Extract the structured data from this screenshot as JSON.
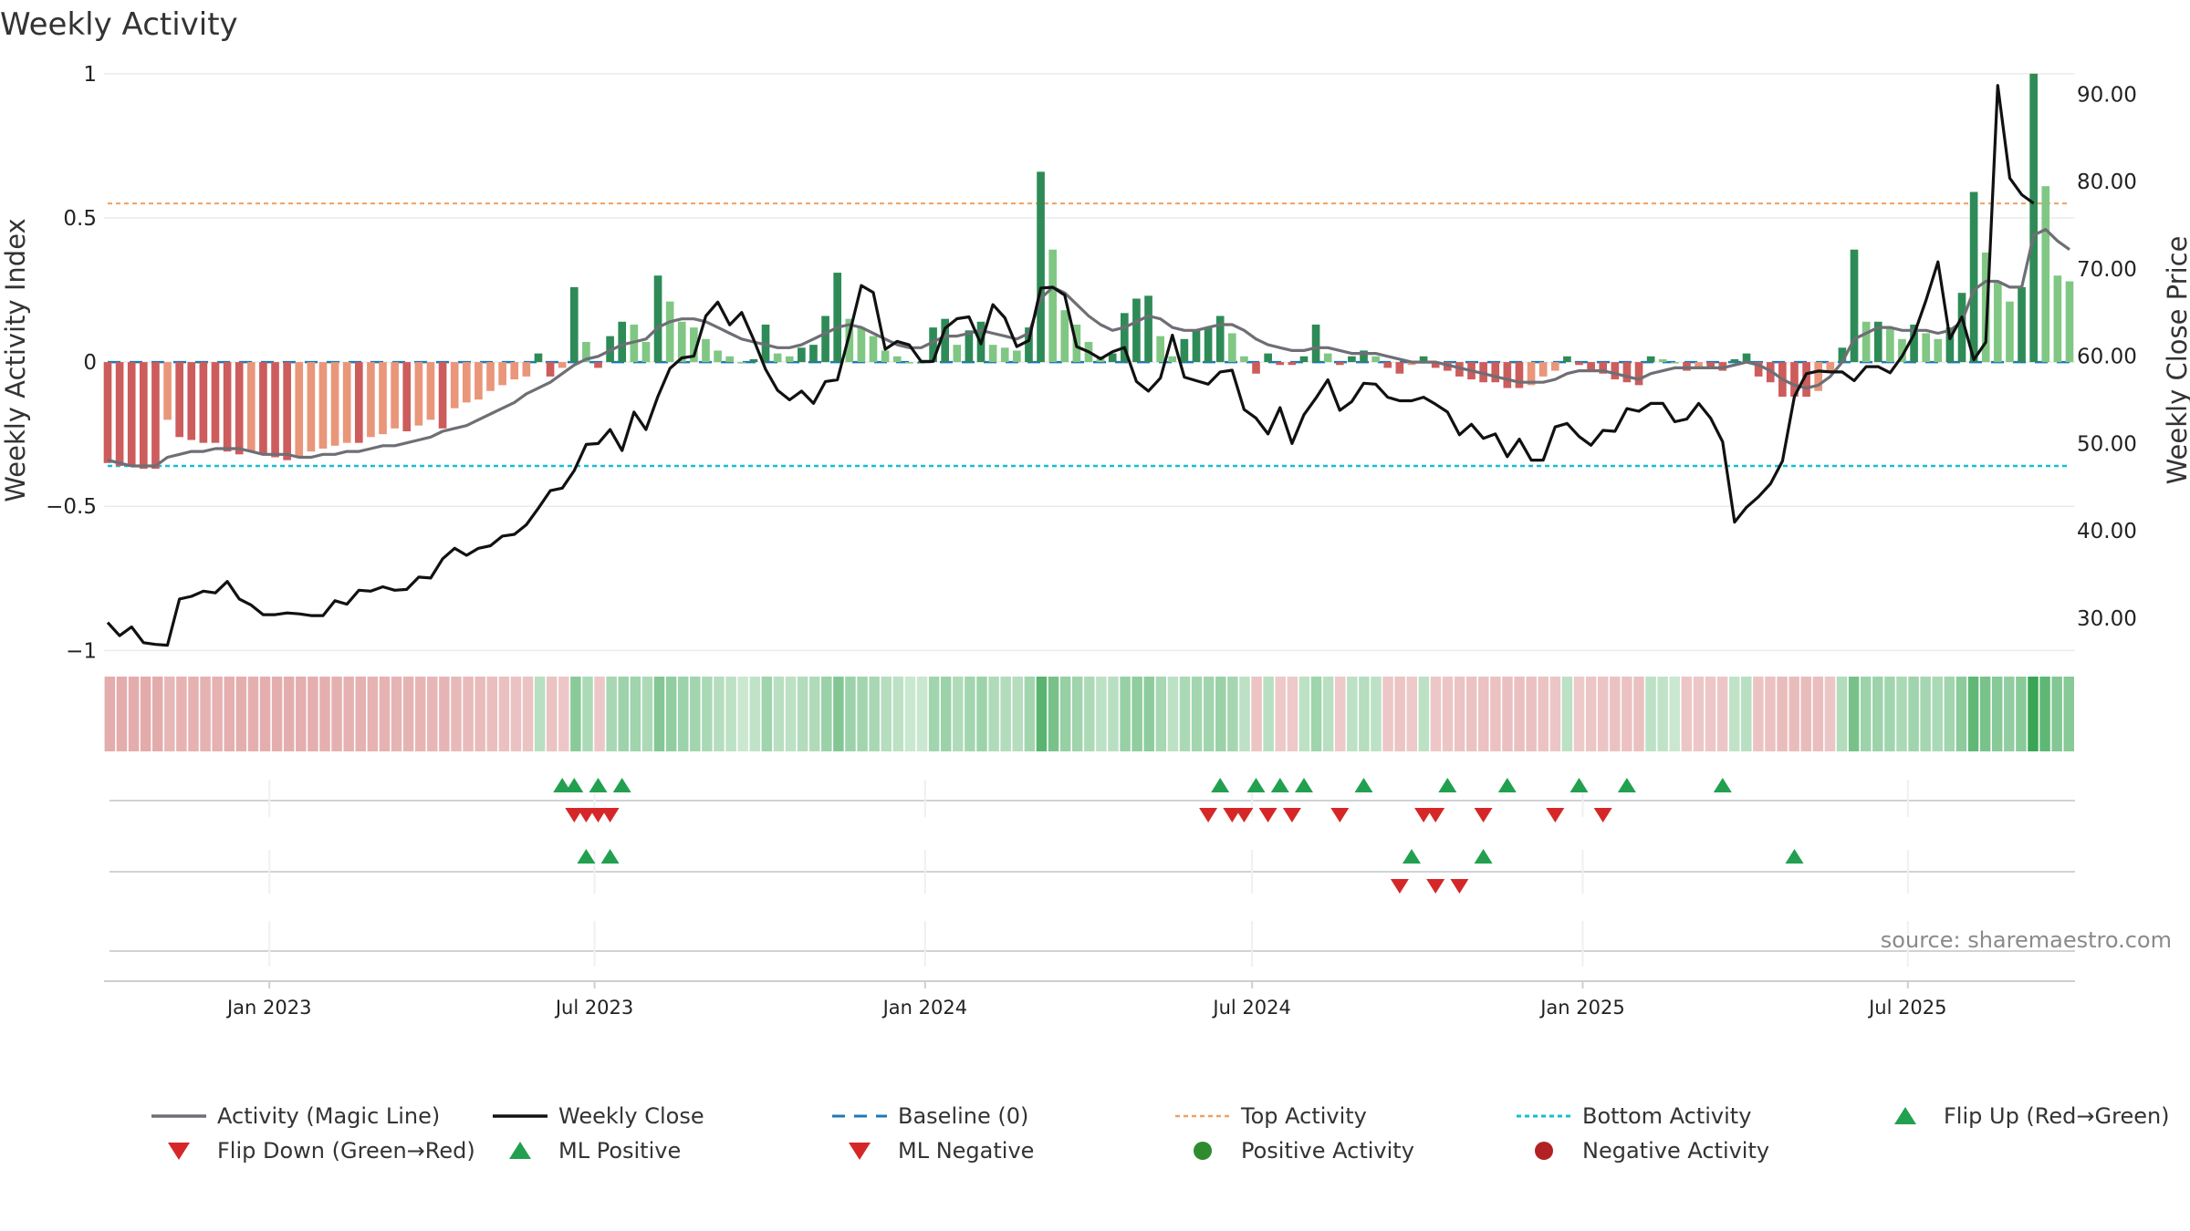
{
  "chart_data": {
    "type": "bar",
    "title": "Weekly Activity",
    "ylabel": "Weekly Activity Index",
    "y2label": "Weekly Close Price",
    "ylim": [
      -1.1,
      1.05
    ],
    "y2lim": [
      23.0,
      94.0
    ],
    "yticks": [
      {
        "value": 1,
        "label": "1"
      },
      {
        "value": 0.5,
        "label": "0.5"
      },
      {
        "value": 0,
        "label": "0"
      },
      {
        "value": -0.5,
        "label": "−0.5"
      },
      {
        "value": -1,
        "label": "−1"
      }
    ],
    "y2ticks": [
      {
        "value": 90,
        "label": "90.00"
      },
      {
        "value": 80,
        "label": "80.00"
      },
      {
        "value": 70,
        "label": "70.00"
      },
      {
        "value": 60,
        "label": "60.00"
      },
      {
        "value": 50,
        "label": "50.00"
      },
      {
        "value": 40,
        "label": "40.00"
      },
      {
        "value": 30,
        "label": "30.00"
      }
    ],
    "date_range": [
      "2022-10-03",
      "2025-09-29"
    ],
    "xticks": [
      {
        "date": "2023-01-01",
        "label": "Jan 2023"
      },
      {
        "date": "2023-07-01",
        "label": "Jul 2023"
      },
      {
        "date": "2024-01-01",
        "label": "Jan 2024"
      },
      {
        "date": "2024-07-01",
        "label": "Jul 2024"
      },
      {
        "date": "2025-01-01",
        "label": "Jan 2025"
      },
      {
        "date": "2025-07-01",
        "label": "Jul 2025"
      }
    ],
    "start_date": "2022-10-03",
    "week_step_days": 7,
    "activity": [
      -0.35,
      -0.36,
      -0.36,
      -0.37,
      -0.37,
      -0.2,
      -0.26,
      -0.27,
      -0.28,
      -0.28,
      -0.31,
      -0.32,
      -0.31,
      -0.32,
      -0.33,
      -0.34,
      -0.33,
      -0.31,
      -0.3,
      -0.29,
      -0.28,
      -0.28,
      -0.26,
      -0.25,
      -0.23,
      -0.24,
      -0.22,
      -0.2,
      -0.23,
      -0.16,
      -0.14,
      -0.13,
      -0.1,
      -0.08,
      -0.06,
      -0.05,
      0.03,
      -0.05,
      -0.02,
      0.26,
      0.07,
      -0.02,
      0.09,
      0.14,
      0.13,
      0.07,
      0.3,
      0.21,
      0.14,
      0.12,
      0.08,
      0.04,
      0.02,
      0.0,
      0.01,
      0.13,
      0.03,
      0.02,
      0.05,
      0.06,
      0.16,
      0.31,
      0.15,
      0.12,
      0.09,
      0.04,
      0.02,
      0.0,
      0.0,
      0.12,
      0.15,
      0.06,
      0.11,
      0.14,
      0.06,
      0.05,
      0.04,
      0.12,
      0.66,
      0.39,
      0.18,
      0.13,
      0.07,
      0.02,
      0.03,
      0.17,
      0.22,
      0.23,
      0.09,
      0.02,
      0.08,
      0.11,
      0.12,
      0.16,
      0.1,
      0.02,
      -0.04,
      0.03,
      -0.01,
      -0.01,
      0.02,
      0.13,
      0.03,
      -0.01,
      0.02,
      0.04,
      0.02,
      -0.02,
      -0.04,
      -0.01,
      0.02,
      -0.02,
      -0.03,
      -0.05,
      -0.06,
      -0.07,
      -0.07,
      -0.09,
      -0.09,
      -0.08,
      -0.05,
      -0.03,
      0.02,
      -0.01,
      -0.03,
      -0.04,
      -0.06,
      -0.07,
      -0.08,
      0.02,
      0.01,
      0.0,
      -0.03,
      -0.02,
      -0.02,
      -0.03,
      0.01,
      0.03,
      -0.05,
      -0.07,
      -0.12,
      -0.12,
      -0.12,
      -0.1,
      -0.03,
      0.05,
      0.39,
      0.14,
      0.14,
      0.12,
      0.08,
      0.13,
      0.1,
      0.08,
      0.12,
      0.24,
      0.59,
      0.38,
      0.28,
      0.21,
      0.26,
      1.0,
      0.61,
      0.3,
      0.28
    ],
    "magic_line": [
      -0.34,
      -0.35,
      -0.36,
      -0.36,
      -0.36,
      -0.33,
      -0.32,
      -0.31,
      -0.31,
      -0.3,
      -0.3,
      -0.3,
      -0.31,
      -0.32,
      -0.32,
      -0.32,
      -0.33,
      -0.33,
      -0.32,
      -0.32,
      -0.31,
      -0.31,
      -0.3,
      -0.29,
      -0.29,
      -0.28,
      -0.27,
      -0.26,
      -0.24,
      -0.23,
      -0.22,
      -0.2,
      -0.18,
      -0.16,
      -0.14,
      -0.11,
      -0.09,
      -0.07,
      -0.04,
      -0.01,
      0.01,
      0.02,
      0.04,
      0.06,
      0.07,
      0.08,
      0.12,
      0.14,
      0.15,
      0.15,
      0.14,
      0.12,
      0.1,
      0.08,
      0.07,
      0.06,
      0.05,
      0.05,
      0.06,
      0.08,
      0.1,
      0.12,
      0.13,
      0.12,
      0.1,
      0.08,
      0.06,
      0.05,
      0.05,
      0.07,
      0.09,
      0.09,
      0.1,
      0.11,
      0.1,
      0.09,
      0.08,
      0.1,
      0.22,
      0.26,
      0.24,
      0.2,
      0.16,
      0.13,
      0.11,
      0.12,
      0.14,
      0.16,
      0.15,
      0.12,
      0.11,
      0.11,
      0.12,
      0.13,
      0.13,
      0.11,
      0.08,
      0.06,
      0.05,
      0.04,
      0.04,
      0.05,
      0.05,
      0.04,
      0.03,
      0.03,
      0.03,
      0.02,
      0.01,
      0.0,
      0.0,
      0.0,
      -0.01,
      -0.02,
      -0.03,
      -0.04,
      -0.05,
      -0.06,
      -0.07,
      -0.07,
      -0.07,
      -0.06,
      -0.04,
      -0.03,
      -0.03,
      -0.03,
      -0.04,
      -0.05,
      -0.06,
      -0.04,
      -0.03,
      -0.02,
      -0.02,
      -0.02,
      -0.02,
      -0.02,
      -0.01,
      0.0,
      -0.01,
      -0.03,
      -0.06,
      -0.08,
      -0.09,
      -0.08,
      -0.05,
      0.0,
      0.08,
      0.1,
      0.12,
      0.12,
      0.11,
      0.11,
      0.11,
      0.1,
      0.11,
      0.14,
      0.25,
      0.28,
      0.28,
      0.26,
      0.26,
      0.44,
      0.46,
      0.42,
      0.39
    ],
    "weekly_close": [
      29.5,
      28.0,
      29.0,
      27.2,
      27.0,
      26.9,
      32.2,
      32.5,
      33.1,
      32.9,
      34.2,
      32.2,
      31.5,
      30.4,
      30.4,
      30.6,
      30.5,
      30.3,
      30.3,
      32.0,
      31.6,
      33.2,
      33.1,
      33.6,
      33.2,
      33.3,
      34.7,
      34.6,
      36.8,
      38.0,
      37.2,
      38.0,
      38.3,
      39.4,
      39.6,
      40.7,
      42.6,
      44.6,
      44.9,
      46.9,
      49.9,
      50.0,
      51.6,
      49.2,
      53.6,
      51.6,
      55.4,
      58.6,
      59.8,
      60.0,
      64.6,
      66.2,
      63.6,
      65.0,
      61.9,
      58.5,
      56.1,
      55.0,
      56.0,
      54.6,
      57.1,
      57.3,
      62.5,
      68.1,
      67.3,
      60.8,
      61.7,
      61.3,
      59.4,
      59.4,
      63.2,
      64.3,
      64.5,
      61.4,
      65.9,
      64.4,
      61.1,
      61.8,
      67.8,
      67.9,
      67.0,
      61.1,
      60.5,
      59.7,
      60.5,
      61.0,
      57.1,
      56.0,
      57.5,
      62.4,
      57.6,
      57.2,
      56.8,
      58.2,
      58.4,
      53.9,
      52.9,
      51.1,
      54.1,
      50.0,
      53.3,
      55.2,
      57.3,
      53.8,
      54.8,
      56.9,
      56.8,
      55.3,
      54.9,
      54.9,
      55.3,
      54.5,
      53.6,
      51.0,
      52.2,
      50.6,
      51.1,
      48.5,
      50.5,
      48.1,
      48.1,
      51.9,
      52.3,
      50.8,
      49.8,
      51.5,
      51.4,
      54.0,
      53.7,
      54.6,
      54.6,
      52.5,
      52.8,
      54.6,
      52.9,
      50.2,
      41.0,
      42.7,
      43.9,
      45.4,
      48.0,
      55.4,
      58.0,
      58.3,
      58.2,
      58.2,
      57.2,
      58.8,
      58.8,
      58.1,
      60.0,
      62.5,
      66.4,
      70.8,
      62.0,
      64.5,
      59.6,
      61.6,
      91.0,
      80.4,
      78.5,
      77.5
    ],
    "top_activity": 0.55,
    "bottom_activity": -0.36,
    "heat_strip_note": "one colored cell per week; intensity mirrors the activity value",
    "flip_up_weeks": [
      38,
      39,
      41,
      43,
      93,
      96,
      98,
      100,
      105,
      112,
      117,
      123,
      127,
      135
    ],
    "flip_down_weeks": [
      39,
      40,
      41,
      42,
      92,
      94,
      95,
      97,
      99,
      103,
      110,
      111,
      115,
      121,
      125
    ],
    "ml_positive_weeks": [
      40,
      42,
      109,
      115,
      141
    ],
    "ml_negative_weeks": [
      108,
      111,
      113
    ],
    "colors": {
      "pos_strong": "#2e8b57",
      "pos_light": "#81c784",
      "neg_strong": "#cd5c5c",
      "neg_light": "#e9967a",
      "magic_line": "#6e6e75",
      "weekly_close": "#111111",
      "baseline": "#1f77b4",
      "top": "#f0a060",
      "bottom": "#17becf",
      "marker_up": "#22a050",
      "marker_down": "#d62728",
      "pos_dot": "#2e8b2e",
      "neg_dot": "#b22222"
    },
    "legend": [
      {
        "label": "Activity (Magic Line)",
        "kind": "line-gray"
      },
      {
        "label": "Weekly Close",
        "kind": "line-black"
      },
      {
        "label": "Baseline (0)",
        "kind": "dash-blue"
      },
      {
        "label": "Top Activity",
        "kind": "dot-orange"
      },
      {
        "label": "Bottom Activity",
        "kind": "dot-cyan"
      },
      {
        "label": "Flip Up (Red→Green)",
        "kind": "tri-up-green"
      },
      {
        "label": "Flip Down (Green→Red)",
        "kind": "tri-down-red"
      },
      {
        "label": "ML Positive",
        "kind": "tri-up-green"
      },
      {
        "label": "ML Negative",
        "kind": "tri-down-red"
      },
      {
        "label": "Positive Activity",
        "kind": "circle-green"
      },
      {
        "label": "Negative Activity",
        "kind": "circle-red"
      }
    ],
    "source": "source: sharemaestro.com"
  }
}
